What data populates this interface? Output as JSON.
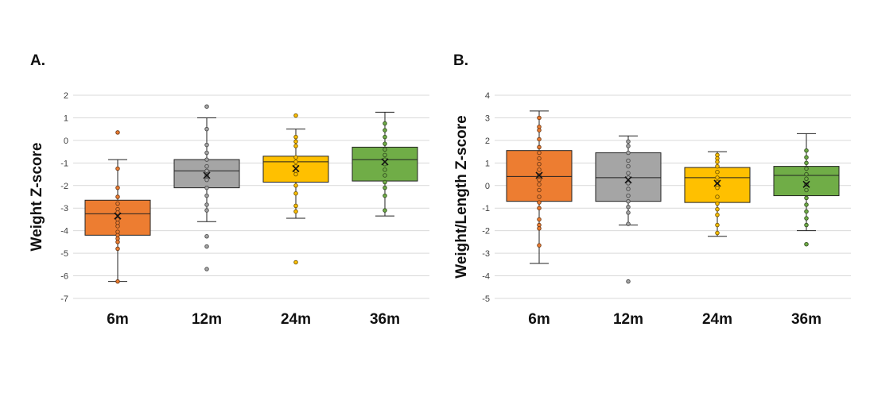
{
  "panels": [
    {
      "label": "A."
    },
    {
      "label": "B."
    }
  ],
  "chart_data": [
    {
      "type": "box",
      "title": "",
      "ylabel": "Weight Z-score",
      "xlabel": "",
      "ylim": [
        -7,
        2
      ],
      "yticks": [
        2,
        1,
        0,
        -1,
        -2,
        -3,
        -4,
        -5,
        -6,
        -7
      ],
      "grid": true,
      "categories": [
        "6m",
        "12m",
        "24m",
        "36m"
      ],
      "colors": [
        "#ED7D31",
        "#A5A5A5",
        "#FFC000",
        "#70AD47"
      ],
      "boxes": [
        {
          "min": -6.25,
          "q1": -4.2,
          "median": -3.25,
          "q3": -2.65,
          "max": -0.85,
          "mean": -3.35,
          "points": [
            0.35,
            -1.25,
            -2.1,
            -2.5,
            -2.8,
            -3.05,
            -3.2,
            -3.5,
            -3.65,
            -3.8,
            -4.05,
            -4.2,
            -4.35,
            -4.5,
            -4.8,
            -6.25
          ]
        },
        {
          "min": -3.6,
          "q1": -2.1,
          "median": -1.35,
          "q3": -0.85,
          "max": 1.0,
          "mean": -1.55,
          "points": [
            1.5,
            0.5,
            -0.2,
            -0.55,
            -0.85,
            -1.15,
            -1.35,
            -1.55,
            -1.75,
            -2.1,
            -2.45,
            -2.85,
            -3.1,
            -4.25,
            -4.7,
            -5.7
          ]
        },
        {
          "min": -3.45,
          "q1": -1.85,
          "median": -0.95,
          "q3": -0.7,
          "max": 0.5,
          "mean": -1.25,
          "points": [
            1.1,
            0.15,
            -0.05,
            -0.25,
            -0.75,
            -0.95,
            -1.15,
            -1.35,
            -1.5,
            -2.0,
            -2.35,
            -2.9,
            -3.15,
            -5.4
          ]
        },
        {
          "min": -3.35,
          "q1": -1.8,
          "median": -0.85,
          "q3": -0.3,
          "max": 1.25,
          "mean": -0.95,
          "points": [
            0.75,
            0.45,
            0.15,
            -0.15,
            -0.4,
            -0.65,
            -0.85,
            -1.05,
            -1.3,
            -1.55,
            -1.85,
            -2.1,
            -2.45,
            -3.1
          ]
        }
      ]
    },
    {
      "type": "box",
      "title": "",
      "ylabel": "Weight/Length Z-score",
      "xlabel": "",
      "ylim": [
        -5,
        4
      ],
      "yticks": [
        4,
        3,
        2,
        1,
        0,
        -1,
        -2,
        -3,
        -4,
        -5
      ],
      "grid": true,
      "categories": [
        "6m",
        "12m",
        "24m",
        "36m"
      ],
      "colors": [
        "#ED7D31",
        "#A5A5A5",
        "#FFC000",
        "#70AD47"
      ],
      "boxes": [
        {
          "min": -3.45,
          "q1": -0.7,
          "median": 0.4,
          "q3": 1.55,
          "max": 3.3,
          "mean": 0.45,
          "points": [
            3.0,
            2.6,
            2.45,
            2.05,
            1.7,
            1.45,
            1.2,
            0.95,
            0.7,
            0.45,
            0.25,
            0.05,
            -0.2,
            -0.5,
            -0.75,
            -1.0,
            -1.5,
            -1.75,
            -1.9,
            -2.65
          ]
        },
        {
          "min": -1.75,
          "q1": -0.7,
          "median": 0.35,
          "q3": 1.45,
          "max": 2.2,
          "mean": 0.25,
          "points": [
            1.95,
            1.75,
            1.45,
            1.1,
            0.85,
            0.55,
            0.35,
            0.1,
            -0.15,
            -0.45,
            -0.7,
            -0.95,
            -1.2,
            -1.7,
            -4.25
          ]
        },
        {
          "min": -2.25,
          "q1": -0.75,
          "median": 0.35,
          "q3": 0.8,
          "max": 1.5,
          "mean": 0.1,
          "points": [
            1.35,
            1.2,
            1.05,
            0.85,
            0.6,
            0.35,
            0.15,
            -0.1,
            -0.5,
            -0.8,
            -1.05,
            -1.3,
            -1.75,
            -2.1
          ]
        },
        {
          "min": -2.0,
          "q1": -0.45,
          "median": 0.45,
          "q3": 0.85,
          "max": 2.3,
          "mean": 0.05,
          "points": [
            1.55,
            1.25,
            1.0,
            0.75,
            0.5,
            0.3,
            0.05,
            -0.2,
            -0.55,
            -0.85,
            -1.15,
            -1.45,
            -1.75,
            -2.6
          ]
        }
      ]
    }
  ]
}
